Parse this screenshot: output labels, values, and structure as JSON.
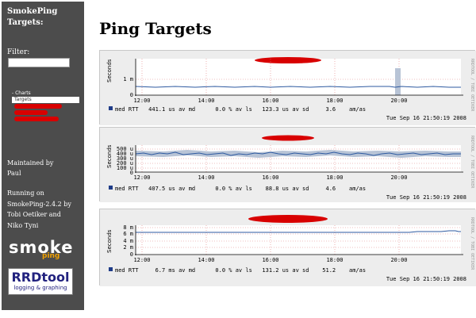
{
  "sidebar": {
    "title": "SmokePing Targets:",
    "filter_label": "Filter:",
    "filter_value": "",
    "nav": {
      "charts_label": "- Charts",
      "targets_label": "Targets"
    },
    "maintained_by": "Maintained by",
    "maintainer": "Paul",
    "running_on": "Running on",
    "version": "SmokePing-2.4.2 by",
    "author1": "Tobi Oetiker and",
    "author2": "Niko Tyni",
    "logo_smoke": "smoke",
    "logo_ping": "ping",
    "logo_rrd_title": "RRDtool",
    "logo_rrd_subtitle": "logging & graphing"
  },
  "page": {
    "title": "Ping Targets"
  },
  "colors": {
    "sidebar_bg": "#4c4c4c",
    "panel_bg": "#ededed",
    "line": "#2e5aa0",
    "band": "#b8c4d6",
    "grid_major": "#e08080",
    "redaction": "#d80000",
    "legend_swatch": "#1f3c88"
  },
  "graphs": [
    {
      "ylabel": "Seconds",
      "yticks": [
        "1 m",
        "0"
      ],
      "xticks": [
        "12:00",
        "14:00",
        "16:00",
        "18:00",
        "20:00"
      ],
      "legend": "med RTT   441.1 us av md      0.0 % av ls   123.3 us av sd     3.6    am/as",
      "timestamp": "Tue Sep 16 21:50:19 2008",
      "side": "RRDTOOL / TOBI OETIKER"
    },
    {
      "ylabel": "Seconds",
      "yticks": [
        "500 u",
        "400 u",
        "300 u",
        "200 u",
        "100 u",
        "0"
      ],
      "xticks": [
        "12:00",
        "14:00",
        "16:00",
        "18:00",
        "20:00"
      ],
      "legend": "med RTT   407.5 us av md      0.0 % av ls    88.8 us av sd     4.6    am/as",
      "timestamp": "Tue Sep 16 21:50:19 2008",
      "side": "RRDTOOL / TOBI OETIKER"
    },
    {
      "ylabel": "Seconds",
      "yticks": [
        "8 m",
        "6 m",
        "4 m",
        "2 m",
        "0"
      ],
      "xticks": [
        "12:00",
        "14:00",
        "16:00",
        "18:00",
        "20:00"
      ],
      "legend": "med RTT     6.7 ms av md      0.0 % av ls   131.2 us av sd    51.2    am/as",
      "timestamp": "Tue Sep 16 21:50:19 2008",
      "side": "RRDTOOL / TOBI OETIKER"
    }
  ]
}
